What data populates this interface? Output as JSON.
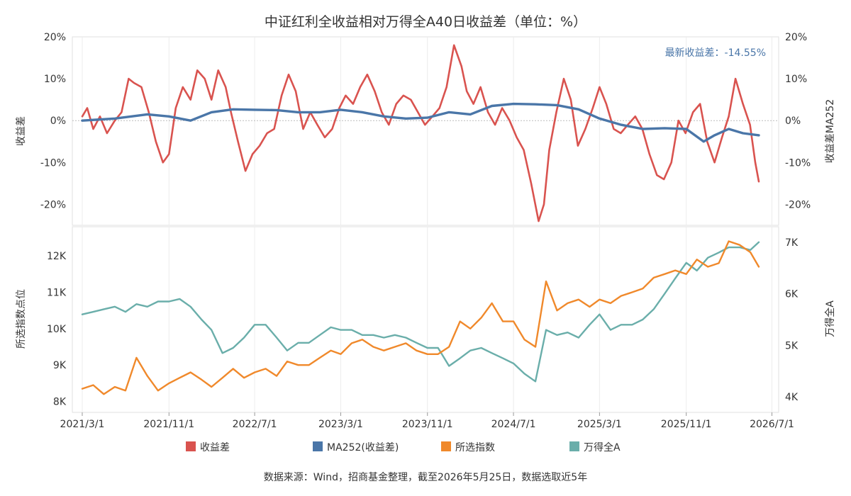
{
  "chart_data": {
    "title": "中证红利全收益相对万得全A40日收益差（单位：%）",
    "source_note": "数据来源：Wind，招商基金整理，截至2026年5月25日，数据选取近5年",
    "annotation": "最新收益差：-14.55%",
    "x_ticks": [
      "2021/3/1",
      "2021/11/1",
      "2022/7/1",
      "2023/3/1",
      "2023/11/1",
      "2024/7/1",
      "2025/3/1",
      "2025/11/1",
      "2026/7/1"
    ],
    "x_range": [
      "2021/2/1",
      "2026/7/20"
    ],
    "legend": [
      {
        "name": "收益差",
        "color": "#d9534f"
      },
      {
        "name": "MA252(收益差)",
        "color": "#4a76a8"
      },
      {
        "name": "所选指数",
        "color": "#f0892b"
      },
      {
        "name": "万得全A",
        "color": "#6aaeaa"
      }
    ],
    "charts": [
      {
        "type": "line",
        "panel": "top",
        "ylabel_left": "收益差",
        "ylabel_right": "收益差MA252",
        "ylim": [
          -0.25,
          0.2
        ],
        "left_ticks": [
          "20%",
          "10%",
          "0%",
          "-10%",
          "-20%"
        ],
        "right_ticks": [
          "20%",
          "10%",
          "0%",
          "-10%",
          "-20%"
        ],
        "tick_values": [
          0.2,
          0.1,
          0.0,
          -0.1,
          -0.2
        ],
        "zero_line": true,
        "series": [
          {
            "name": "收益差",
            "color": "#d9534f",
            "axis": "left",
            "x": [
              "2021/3/1",
              "2021/3/15",
              "2021/4/1",
              "2021/4/20",
              "2021/5/10",
              "2021/6/1",
              "2021/6/20",
              "2021/7/10",
              "2021/7/25",
              "2021/8/15",
              "2021/9/5",
              "2021/9/25",
              "2021/10/15",
              "2021/11/1",
              "2021/11/20",
              "2021/12/10",
              "2022/1/1",
              "2022/1/20",
              "2022/2/10",
              "2022/3/1",
              "2022/3/20",
              "2022/4/10",
              "2022/4/25",
              "2022/5/15",
              "2022/6/5",
              "2022/6/25",
              "2022/7/15",
              "2022/8/5",
              "2022/8/25",
              "2022/9/15",
              "2022/10/5",
              "2022/10/25",
              "2022/11/15",
              "2022/12/5",
              "2022/12/25",
              "2023/1/15",
              "2023/2/5",
              "2023/2/25",
              "2023/3/15",
              "2023/4/5",
              "2023/4/25",
              "2023/5/15",
              "2023/6/5",
              "2023/6/25",
              "2023/7/15",
              "2023/8/5",
              "2023/8/25",
              "2023/9/15",
              "2023/10/5",
              "2023/10/25",
              "2023/11/15",
              "2023/12/5",
              "2023/12/25",
              "2024/1/15",
              "2024/2/5",
              "2024/2/20",
              "2024/3/10",
              "2024/3/30",
              "2024/4/20",
              "2024/5/10",
              "2024/5/30",
              "2024/6/20",
              "2024/7/10",
              "2024/7/30",
              "2024/8/20",
              "2024/9/10",
              "2024/9/25",
              "2024/10/10",
              "2024/10/30",
              "2024/11/20",
              "2024/12/10",
              "2024/12/30",
              "2025/1/20",
              "2025/2/10",
              "2025/3/1",
              "2025/3/20",
              "2025/4/10",
              "2025/4/30",
              "2025/5/20",
              "2025/6/10",
              "2025/6/30",
              "2025/7/20",
              "2025/8/10",
              "2025/8/30",
              "2025/9/20",
              "2025/10/10",
              "2025/10/30",
              "2025/11/20",
              "2025/12/10",
              "2025/12/30",
              "2026/1/20",
              "2026/2/10",
              "2026/3/1",
              "2026/3/20",
              "2026/4/10",
              "2026/4/30",
              "2026/5/15",
              "2026/5/25"
            ],
            "values": [
              0.01,
              0.03,
              -0.02,
              0.01,
              -0.03,
              0.0,
              0.02,
              0.1,
              0.09,
              0.08,
              0.02,
              -0.05,
              -0.1,
              -0.08,
              0.03,
              0.08,
              0.05,
              0.12,
              0.1,
              0.05,
              0.12,
              0.08,
              0.02,
              -0.05,
              -0.12,
              -0.08,
              -0.06,
              -0.03,
              -0.02,
              0.06,
              0.11,
              0.07,
              -0.02,
              0.02,
              -0.01,
              -0.04,
              -0.02,
              0.03,
              0.06,
              0.04,
              0.08,
              0.11,
              0.07,
              0.02,
              -0.01,
              0.04,
              0.06,
              0.05,
              0.02,
              -0.01,
              0.01,
              0.03,
              0.08,
              0.18,
              0.13,
              0.07,
              0.04,
              0.08,
              0.02,
              -0.01,
              0.03,
              0.0,
              -0.04,
              -0.07,
              -0.15,
              -0.24,
              -0.2,
              -0.07,
              0.02,
              0.1,
              0.05,
              -0.06,
              -0.02,
              0.03,
              0.08,
              0.04,
              -0.02,
              -0.03,
              -0.01,
              0.01,
              -0.02,
              -0.08,
              -0.13,
              -0.14,
              -0.1,
              0.0,
              -0.03,
              0.02,
              0.04,
              -0.05,
              -0.1,
              -0.04,
              0.01,
              0.1,
              0.04,
              -0.01,
              -0.1,
              -0.1455
            ]
          },
          {
            "name": "MA252(收益差)",
            "color": "#4a76a8",
            "axis": "right",
            "x": [
              "2021/3/1",
              "2021/6/1",
              "2021/9/1",
              "2021/11/1",
              "2022/1/1",
              "2022/3/1",
              "2022/5/1",
              "2022/7/1",
              "2022/9/1",
              "2022/11/1",
              "2023/1/1",
              "2023/3/1",
              "2023/5/1",
              "2023/7/1",
              "2023/9/1",
              "2023/11/1",
              "2024/1/1",
              "2024/3/1",
              "2024/5/1",
              "2024/7/1",
              "2024/9/1",
              "2024/11/1",
              "2025/1/1",
              "2025/3/1",
              "2025/5/1",
              "2025/7/1",
              "2025/9/1",
              "2025/11/1",
              "2025/12/20",
              "2026/1/20",
              "2026/3/1",
              "2026/4/10",
              "2026/5/25"
            ],
            "values": [
              0.0,
              0.005,
              0.015,
              0.01,
              0.0,
              0.02,
              0.027,
              0.026,
              0.025,
              0.02,
              0.02,
              0.026,
              0.02,
              0.01,
              0.005,
              0.007,
              0.02,
              0.015,
              0.035,
              0.04,
              0.039,
              0.037,
              0.027,
              0.005,
              -0.01,
              -0.02,
              -0.018,
              -0.02,
              -0.05,
              -0.035,
              -0.02,
              -0.03,
              -0.035
            ]
          }
        ]
      },
      {
        "type": "line",
        "panel": "bottom",
        "ylabel_left": "所选指数点位",
        "ylabel_right": "万得全A",
        "ylim_left": [
          7700,
          12800
        ],
        "ylim_right": [
          3700,
          7300
        ],
        "left_ticks": [
          "12K",
          "11K",
          "10K",
          "9K",
          "8K"
        ],
        "left_tick_values": [
          12000,
          11000,
          10000,
          9000,
          8000
        ],
        "right_ticks": [
          "7K",
          "6K",
          "5K",
          "4K"
        ],
        "right_tick_values": [
          7000,
          6000,
          5000,
          4000
        ],
        "series": [
          {
            "name": "所选指数",
            "color": "#f0892b",
            "axis": "left",
            "x": [
              "2021/3/1",
              "2021/4/1",
              "2021/5/1",
              "2021/6/1",
              "2021/7/1",
              "2021/8/1",
              "2021/9/1",
              "2021/10/1",
              "2021/11/1",
              "2021/12/1",
              "2022/1/1",
              "2022/2/1",
              "2022/3/1",
              "2022/4/1",
              "2022/5/1",
              "2022/6/1",
              "2022/7/1",
              "2022/8/1",
              "2022/9/1",
              "2022/10/1",
              "2022/11/1",
              "2022/12/1",
              "2023/1/1",
              "2023/2/1",
              "2023/3/1",
              "2023/4/1",
              "2023/5/1",
              "2023/6/1",
              "2023/7/1",
              "2023/8/1",
              "2023/9/1",
              "2023/10/1",
              "2023/11/1",
              "2023/12/1",
              "2024/1/1",
              "2024/2/1",
              "2024/3/1",
              "2024/4/1",
              "2024/5/1",
              "2024/6/1",
              "2024/7/1",
              "2024/8/1",
              "2024/9/1",
              "2024/10/1",
              "2024/11/1",
              "2024/12/1",
              "2025/1/1",
              "2025/2/1",
              "2025/3/1",
              "2025/4/1",
              "2025/5/1",
              "2025/6/1",
              "2025/7/1",
              "2025/8/1",
              "2025/9/1",
              "2025/10/1",
              "2025/11/1",
              "2025/12/1",
              "2026/1/1",
              "2026/2/1",
              "2026/3/1",
              "2026/4/1",
              "2026/5/1",
              "2026/5/25"
            ],
            "values": [
              8350,
              8450,
              8200,
              8400,
              8300,
              9200,
              8700,
              8300,
              8500,
              8650,
              8800,
              8600,
              8400,
              8650,
              8900,
              8650,
              8800,
              8900,
              8700,
              9100,
              9000,
              9000,
              9200,
              9400,
              9300,
              9600,
              9700,
              9500,
              9400,
              9500,
              9600,
              9400,
              9300,
              9300,
              9500,
              10200,
              10000,
              10300,
              10700,
              10200,
              10200,
              9700,
              9500,
              11300,
              10500,
              10700,
              10800,
              10600,
              10800,
              10700,
              10900,
              11000,
              11100,
              11400,
              11500,
              11600,
              11500,
              11900,
              11700,
              11800,
              12400,
              12300,
              12100,
              11700
            ]
          },
          {
            "name": "万得全A",
            "color": "#6aaeaa",
            "axis": "right",
            "x": [
              "2021/3/1",
              "2021/4/1",
              "2021/5/1",
              "2021/6/1",
              "2021/7/1",
              "2021/8/1",
              "2021/9/1",
              "2021/10/1",
              "2021/11/1",
              "2021/12/1",
              "2022/1/1",
              "2022/2/1",
              "2022/3/1",
              "2022/4/1",
              "2022/5/1",
              "2022/6/1",
              "2022/7/1",
              "2022/8/1",
              "2022/9/1",
              "2022/10/1",
              "2022/11/1",
              "2022/12/1",
              "2023/1/1",
              "2023/2/1",
              "2023/3/1",
              "2023/4/1",
              "2023/5/1",
              "2023/6/1",
              "2023/7/1",
              "2023/8/1",
              "2023/9/1",
              "2023/10/1",
              "2023/11/1",
              "2023/12/1",
              "2024/1/1",
              "2024/2/1",
              "2024/3/1",
              "2024/4/1",
              "2024/5/1",
              "2024/6/1",
              "2024/7/1",
              "2024/8/1",
              "2024/9/1",
              "2024/10/1",
              "2024/11/1",
              "2024/12/1",
              "2025/1/1",
              "2025/2/1",
              "2025/3/1",
              "2025/4/1",
              "2025/5/1",
              "2025/6/1",
              "2025/7/1",
              "2025/8/1",
              "2025/9/1",
              "2025/10/1",
              "2025/11/1",
              "2025/12/1",
              "2026/1/1",
              "2026/2/1",
              "2026/3/1",
              "2026/4/1",
              "2026/5/1",
              "2026/5/25"
            ],
            "values": [
              5600,
              5650,
              5700,
              5750,
              5650,
              5800,
              5750,
              5850,
              5850,
              5900,
              5750,
              5500,
              5300,
              4850,
              4950,
              5150,
              5400,
              5400,
              5150,
              4900,
              5050,
              5050,
              5200,
              5350,
              5300,
              5300,
              5200,
              5200,
              5150,
              5200,
              5150,
              5050,
              4950,
              4950,
              4600,
              4750,
              4900,
              4950,
              4850,
              4750,
              4650,
              4450,
              4300,
              5300,
              5200,
              5250,
              5150,
              5400,
              5600,
              5300,
              5400,
              5400,
              5500,
              5700,
              6000,
              6300,
              6600,
              6450,
              6700,
              6800,
              6900,
              6900,
              6850,
              7000
            ]
          }
        ]
      }
    ]
  }
}
